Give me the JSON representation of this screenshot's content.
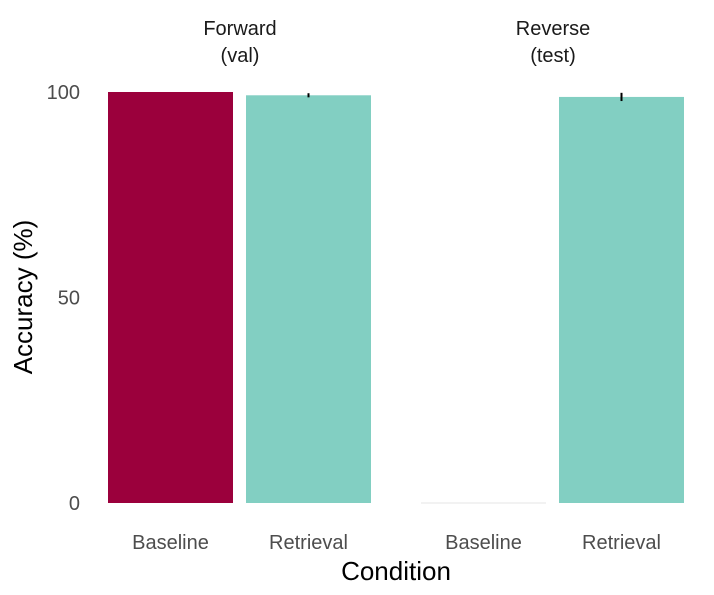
{
  "chart_data": {
    "type": "bar",
    "xlabel": "Condition",
    "ylabel": "Accuracy (%)",
    "ylim": [
      0,
      100
    ],
    "yticks": [
      0,
      50,
      100
    ],
    "grid": false,
    "legend": "none",
    "panels": [
      {
        "title_line1": "Forward",
        "title_line2": "(val)",
        "categories": [
          "Baseline",
          "Retrieval"
        ],
        "values": [
          100,
          99.2
        ],
        "error": [
          0,
          0.5
        ],
        "colors": [
          "#9B003C",
          "#82CFC2"
        ]
      },
      {
        "title_line1": "Reverse",
        "title_line2": "(test)",
        "categories": [
          "Baseline",
          "Retrieval"
        ],
        "values": [
          0,
          98.8
        ],
        "error": [
          0,
          1.0
        ],
        "colors": [
          "#9B003C",
          "#82CFC2"
        ]
      }
    ]
  }
}
